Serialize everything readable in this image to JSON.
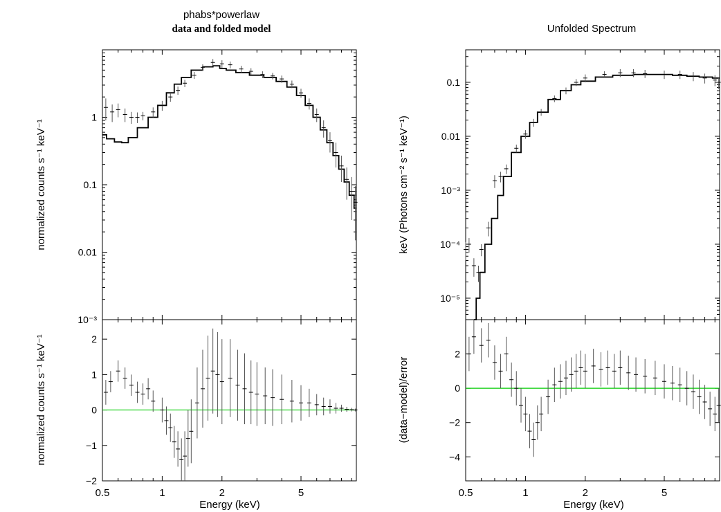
{
  "left": {
    "title_line1": "phabs*powerlaw",
    "title_line2": "data and folded model",
    "top_ylabel": "normalized counts s⁻¹ keV⁻¹",
    "bottom_ylabel": "normalized counts s⁻¹ keV⁻¹",
    "xlabel": "Energy (keV)"
  },
  "right": {
    "title": "Unfolded Spectrum",
    "top_ylabel": "keV (Photons cm⁻² s⁻¹ keV⁻¹)",
    "bottom_ylabel": "(data−model)/error",
    "xlabel": "Energy (keV)"
  },
  "colors": {
    "data": "#000000",
    "error_bar": "#555555",
    "model": "#000000",
    "zero_line": "#00cc00"
  },
  "chart_data": [
    {
      "id": "left-top",
      "type": "line",
      "scale": {
        "x": "log",
        "y": "log"
      },
      "xlim": [
        0.5,
        9.5
      ],
      "ylim": [
        0.001,
        10
      ],
      "yticks": [
        {
          "v": 1,
          "label": "1"
        },
        {
          "v": 0.1,
          "label": "0.1"
        },
        {
          "v": 0.01,
          "label": "0.01"
        },
        {
          "v": 0.001,
          "label": "10⁻³"
        }
      ],
      "model": {
        "name": "model",
        "x": [
          0.5,
          0.55,
          0.6,
          0.65,
          0.7,
          0.8,
          0.9,
          1.0,
          1.1,
          1.2,
          1.3,
          1.5,
          1.7,
          1.9,
          2.0,
          2.2,
          2.5,
          3.0,
          3.5,
          4.0,
          4.5,
          5.0,
          5.5,
          6.0,
          6.5,
          7.0,
          7.5,
          8.0,
          8.5,
          9.0,
          9.5
        ],
        "y": [
          0.55,
          0.48,
          0.43,
          0.42,
          0.5,
          0.7,
          1.0,
          1.5,
          2.3,
          3.1,
          3.9,
          5.0,
          5.6,
          5.8,
          5.3,
          5.0,
          4.6,
          4.2,
          3.9,
          3.4,
          2.8,
          2.1,
          1.5,
          1.0,
          0.65,
          0.42,
          0.27,
          0.17,
          0.11,
          0.07,
          0.045
        ]
      },
      "data": {
        "name": "data",
        "x": [
          0.52,
          0.56,
          0.6,
          0.65,
          0.7,
          0.75,
          0.8,
          0.9,
          1.0,
          1.1,
          1.2,
          1.3,
          1.45,
          1.6,
          1.8,
          2.0,
          2.2,
          2.5,
          2.8,
          3.2,
          3.6,
          4.0,
          4.5,
          5.0,
          5.5,
          6.0,
          6.5,
          7.0,
          7.5,
          8.0,
          8.5,
          9.0,
          9.4
        ],
        "y": [
          1.4,
          1.2,
          1.3,
          1.1,
          1.0,
          1.0,
          1.05,
          1.2,
          1.5,
          2.0,
          2.5,
          3.2,
          4.2,
          5.5,
          6.5,
          6.2,
          6.0,
          5.2,
          4.8,
          4.3,
          4.1,
          3.7,
          3.1,
          2.3,
          1.6,
          1.1,
          0.7,
          0.45,
          0.3,
          0.19,
          0.12,
          0.08,
          0.055
        ],
        "err": [
          0.5,
          0.35,
          0.3,
          0.25,
          0.2,
          0.18,
          0.15,
          0.2,
          0.25,
          0.3,
          0.35,
          0.4,
          0.5,
          0.6,
          0.8,
          0.8,
          0.7,
          0.6,
          0.55,
          0.5,
          0.45,
          0.45,
          0.4,
          0.35,
          0.3,
          0.25,
          0.2,
          0.15,
          0.12,
          0.08,
          0.06,
          0.05,
          0.04
        ]
      }
    },
    {
      "id": "left-bottom",
      "type": "scatter",
      "scale": {
        "x": "log",
        "y": "linear"
      },
      "xlim": [
        0.5,
        9.5
      ],
      "ylim": [
        -2,
        2.55
      ],
      "yticks": [
        {
          "v": 2,
          "label": "2"
        },
        {
          "v": 1,
          "label": "1"
        },
        {
          "v": 0,
          "label": "0"
        },
        {
          "v": -1,
          "label": "−1"
        },
        {
          "v": -2,
          "label": "−2"
        }
      ],
      "xticks": [
        {
          "v": 0.5,
          "label": "0.5"
        },
        {
          "v": 1,
          "label": "1"
        },
        {
          "v": 2,
          "label": "2"
        },
        {
          "v": 5,
          "label": "5"
        }
      ],
      "zero_line": 0,
      "data": {
        "name": "residuals",
        "x": [
          0.52,
          0.55,
          0.6,
          0.65,
          0.7,
          0.75,
          0.8,
          0.85,
          0.9,
          1.0,
          1.05,
          1.1,
          1.15,
          1.2,
          1.25,
          1.3,
          1.35,
          1.4,
          1.5,
          1.6,
          1.7,
          1.8,
          1.9,
          2.0,
          2.2,
          2.4,
          2.6,
          2.8,
          3.0,
          3.3,
          3.6,
          4.0,
          4.5,
          5.0,
          5.5,
          6.0,
          6.5,
          7.0,
          7.5,
          8.0,
          8.5,
          9.0,
          9.4
        ],
        "y": [
          0.5,
          0.8,
          1.1,
          0.9,
          0.7,
          0.5,
          0.45,
          0.6,
          0.25,
          0.0,
          -0.3,
          -0.5,
          -0.9,
          -1.1,
          -1.4,
          -1.3,
          -0.8,
          -0.6,
          0.2,
          0.6,
          0.9,
          1.1,
          1.0,
          0.8,
          0.9,
          0.7,
          0.6,
          0.5,
          0.45,
          0.4,
          0.35,
          0.3,
          0.25,
          0.2,
          0.2,
          0.15,
          0.1,
          0.1,
          0.05,
          0.05,
          0.02,
          0.01,
          0.0
        ],
        "err": [
          0.35,
          0.3,
          0.3,
          0.3,
          0.3,
          0.3,
          0.3,
          0.3,
          0.3,
          0.35,
          0.4,
          0.4,
          0.45,
          0.5,
          0.6,
          0.7,
          0.8,
          0.9,
          1.0,
          1.1,
          1.2,
          1.2,
          1.2,
          1.2,
          1.1,
          1.0,
          1.0,
          0.9,
          0.9,
          0.8,
          0.8,
          0.7,
          0.6,
          0.5,
          0.4,
          0.3,
          0.25,
          0.2,
          0.15,
          0.1,
          0.07,
          0.05,
          0.04
        ]
      }
    },
    {
      "id": "right-top",
      "type": "line",
      "scale": {
        "x": "log",
        "y": "log"
      },
      "xlim": [
        0.5,
        9.5
      ],
      "ylim": [
        4e-06,
        0.4
      ],
      "yticks": [
        {
          "v": 0.1,
          "label": "0.1"
        },
        {
          "v": 0.01,
          "label": "0.01"
        },
        {
          "v": 0.001,
          "label": "10⁻³"
        },
        {
          "v": 0.0001,
          "label": "10⁻⁴"
        },
        {
          "v": 1e-05,
          "label": "10⁻⁵"
        }
      ],
      "model": {
        "name": "model",
        "x": [
          0.55,
          0.58,
          0.6,
          0.65,
          0.7,
          0.75,
          0.8,
          0.9,
          1.0,
          1.1,
          1.2,
          1.4,
          1.6,
          1.8,
          2.0,
          2.5,
          3.0,
          4.0,
          5.0,
          6.0,
          7.0,
          8.0,
          9.5
        ],
        "y": [
          4e-06,
          1e-05,
          3e-05,
          0.0001,
          0.0003,
          0.0008,
          0.0018,
          0.005,
          0.01,
          0.018,
          0.028,
          0.048,
          0.07,
          0.09,
          0.105,
          0.125,
          0.135,
          0.14,
          0.14,
          0.135,
          0.13,
          0.125,
          0.12
        ]
      },
      "data": {
        "name": "data",
        "x": [
          0.5,
          0.52,
          0.55,
          0.58,
          0.6,
          0.65,
          0.7,
          0.75,
          0.8,
          0.9,
          1.0,
          1.1,
          1.2,
          1.4,
          1.6,
          1.8,
          2.0,
          2.5,
          3.0,
          3.5,
          4.0,
          5.0,
          6.0,
          7.0,
          8.0,
          9.0,
          9.4
        ],
        "y": [
          8e-05,
          0.0001,
          4e-05,
          3e-05,
          8e-05,
          0.0002,
          0.0015,
          0.0018,
          0.0025,
          0.006,
          0.011,
          0.018,
          0.028,
          0.05,
          0.07,
          0.1,
          0.12,
          0.14,
          0.15,
          0.15,
          0.145,
          0.14,
          0.14,
          0.13,
          0.12,
          0.11,
          0.1
        ],
        "err": [
          3e-05,
          3e-05,
          1.5e-05,
          1e-05,
          2e-05,
          6e-05,
          0.0004,
          0.0004,
          0.0005,
          0.001,
          0.002,
          0.003,
          0.004,
          0.007,
          0.01,
          0.015,
          0.02,
          0.02,
          0.025,
          0.025,
          0.025,
          0.025,
          0.025,
          0.025,
          0.025,
          0.025,
          0.025
        ]
      }
    },
    {
      "id": "right-bottom",
      "type": "scatter",
      "scale": {
        "x": "log",
        "y": "linear"
      },
      "xlim": [
        0.5,
        9.5
      ],
      "ylim": [
        -5.4,
        4
      ],
      "yticks": [
        {
          "v": 2,
          "label": "2"
        },
        {
          "v": 0,
          "label": "0"
        },
        {
          "v": -2,
          "label": "−2"
        },
        {
          "v": -4,
          "label": "−4"
        }
      ],
      "xticks": [
        {
          "v": 0.5,
          "label": "0.5"
        },
        {
          "v": 1,
          "label": "1"
        },
        {
          "v": 2,
          "label": "2"
        },
        {
          "v": 5,
          "label": "5"
        }
      ],
      "zero_line": 0,
      "data": {
        "name": "residuals",
        "x": [
          0.52,
          0.55,
          0.6,
          0.65,
          0.7,
          0.75,
          0.8,
          0.85,
          0.9,
          0.95,
          1.0,
          1.05,
          1.1,
          1.15,
          1.2,
          1.3,
          1.4,
          1.5,
          1.6,
          1.7,
          1.8,
          1.9,
          2.0,
          2.2,
          2.4,
          2.6,
          2.8,
          3.0,
          3.3,
          3.6,
          4.0,
          4.5,
          5.0,
          5.5,
          6.0,
          6.5,
          7.0,
          7.5,
          8.0,
          8.5,
          9.0,
          9.4
        ],
        "y": [
          2.0,
          3.0,
          2.5,
          2.8,
          1.5,
          1.0,
          2.0,
          0.5,
          0.0,
          -1.0,
          -1.5,
          -2.5,
          -3.0,
          -2.0,
          -1.5,
          -0.5,
          0.2,
          0.4,
          0.6,
          0.8,
          1.0,
          1.2,
          1.0,
          1.3,
          1.1,
          1.2,
          1.0,
          1.2,
          0.9,
          0.8,
          0.7,
          0.6,
          0.4,
          0.3,
          0.2,
          0.0,
          -0.2,
          -0.5,
          -0.8,
          -1.2,
          -1.5,
          -1.0
        ],
        "err": [
          1.0,
          1.0,
          1.0,
          1.0,
          1.0,
          1.0,
          1.0,
          1.0,
          1.0,
          1.0,
          1.0,
          1.0,
          1.0,
          1.0,
          1.0,
          1.0,
          1.0,
          1.0,
          1.0,
          1.0,
          1.0,
          1.0,
          1.0,
          1.0,
          1.0,
          1.0,
          1.0,
          1.0,
          1.0,
          1.0,
          1.0,
          1.0,
          1.0,
          1.0,
          1.0,
          1.0,
          1.0,
          1.0,
          1.0,
          1.0,
          1.0,
          1.0
        ]
      }
    }
  ]
}
